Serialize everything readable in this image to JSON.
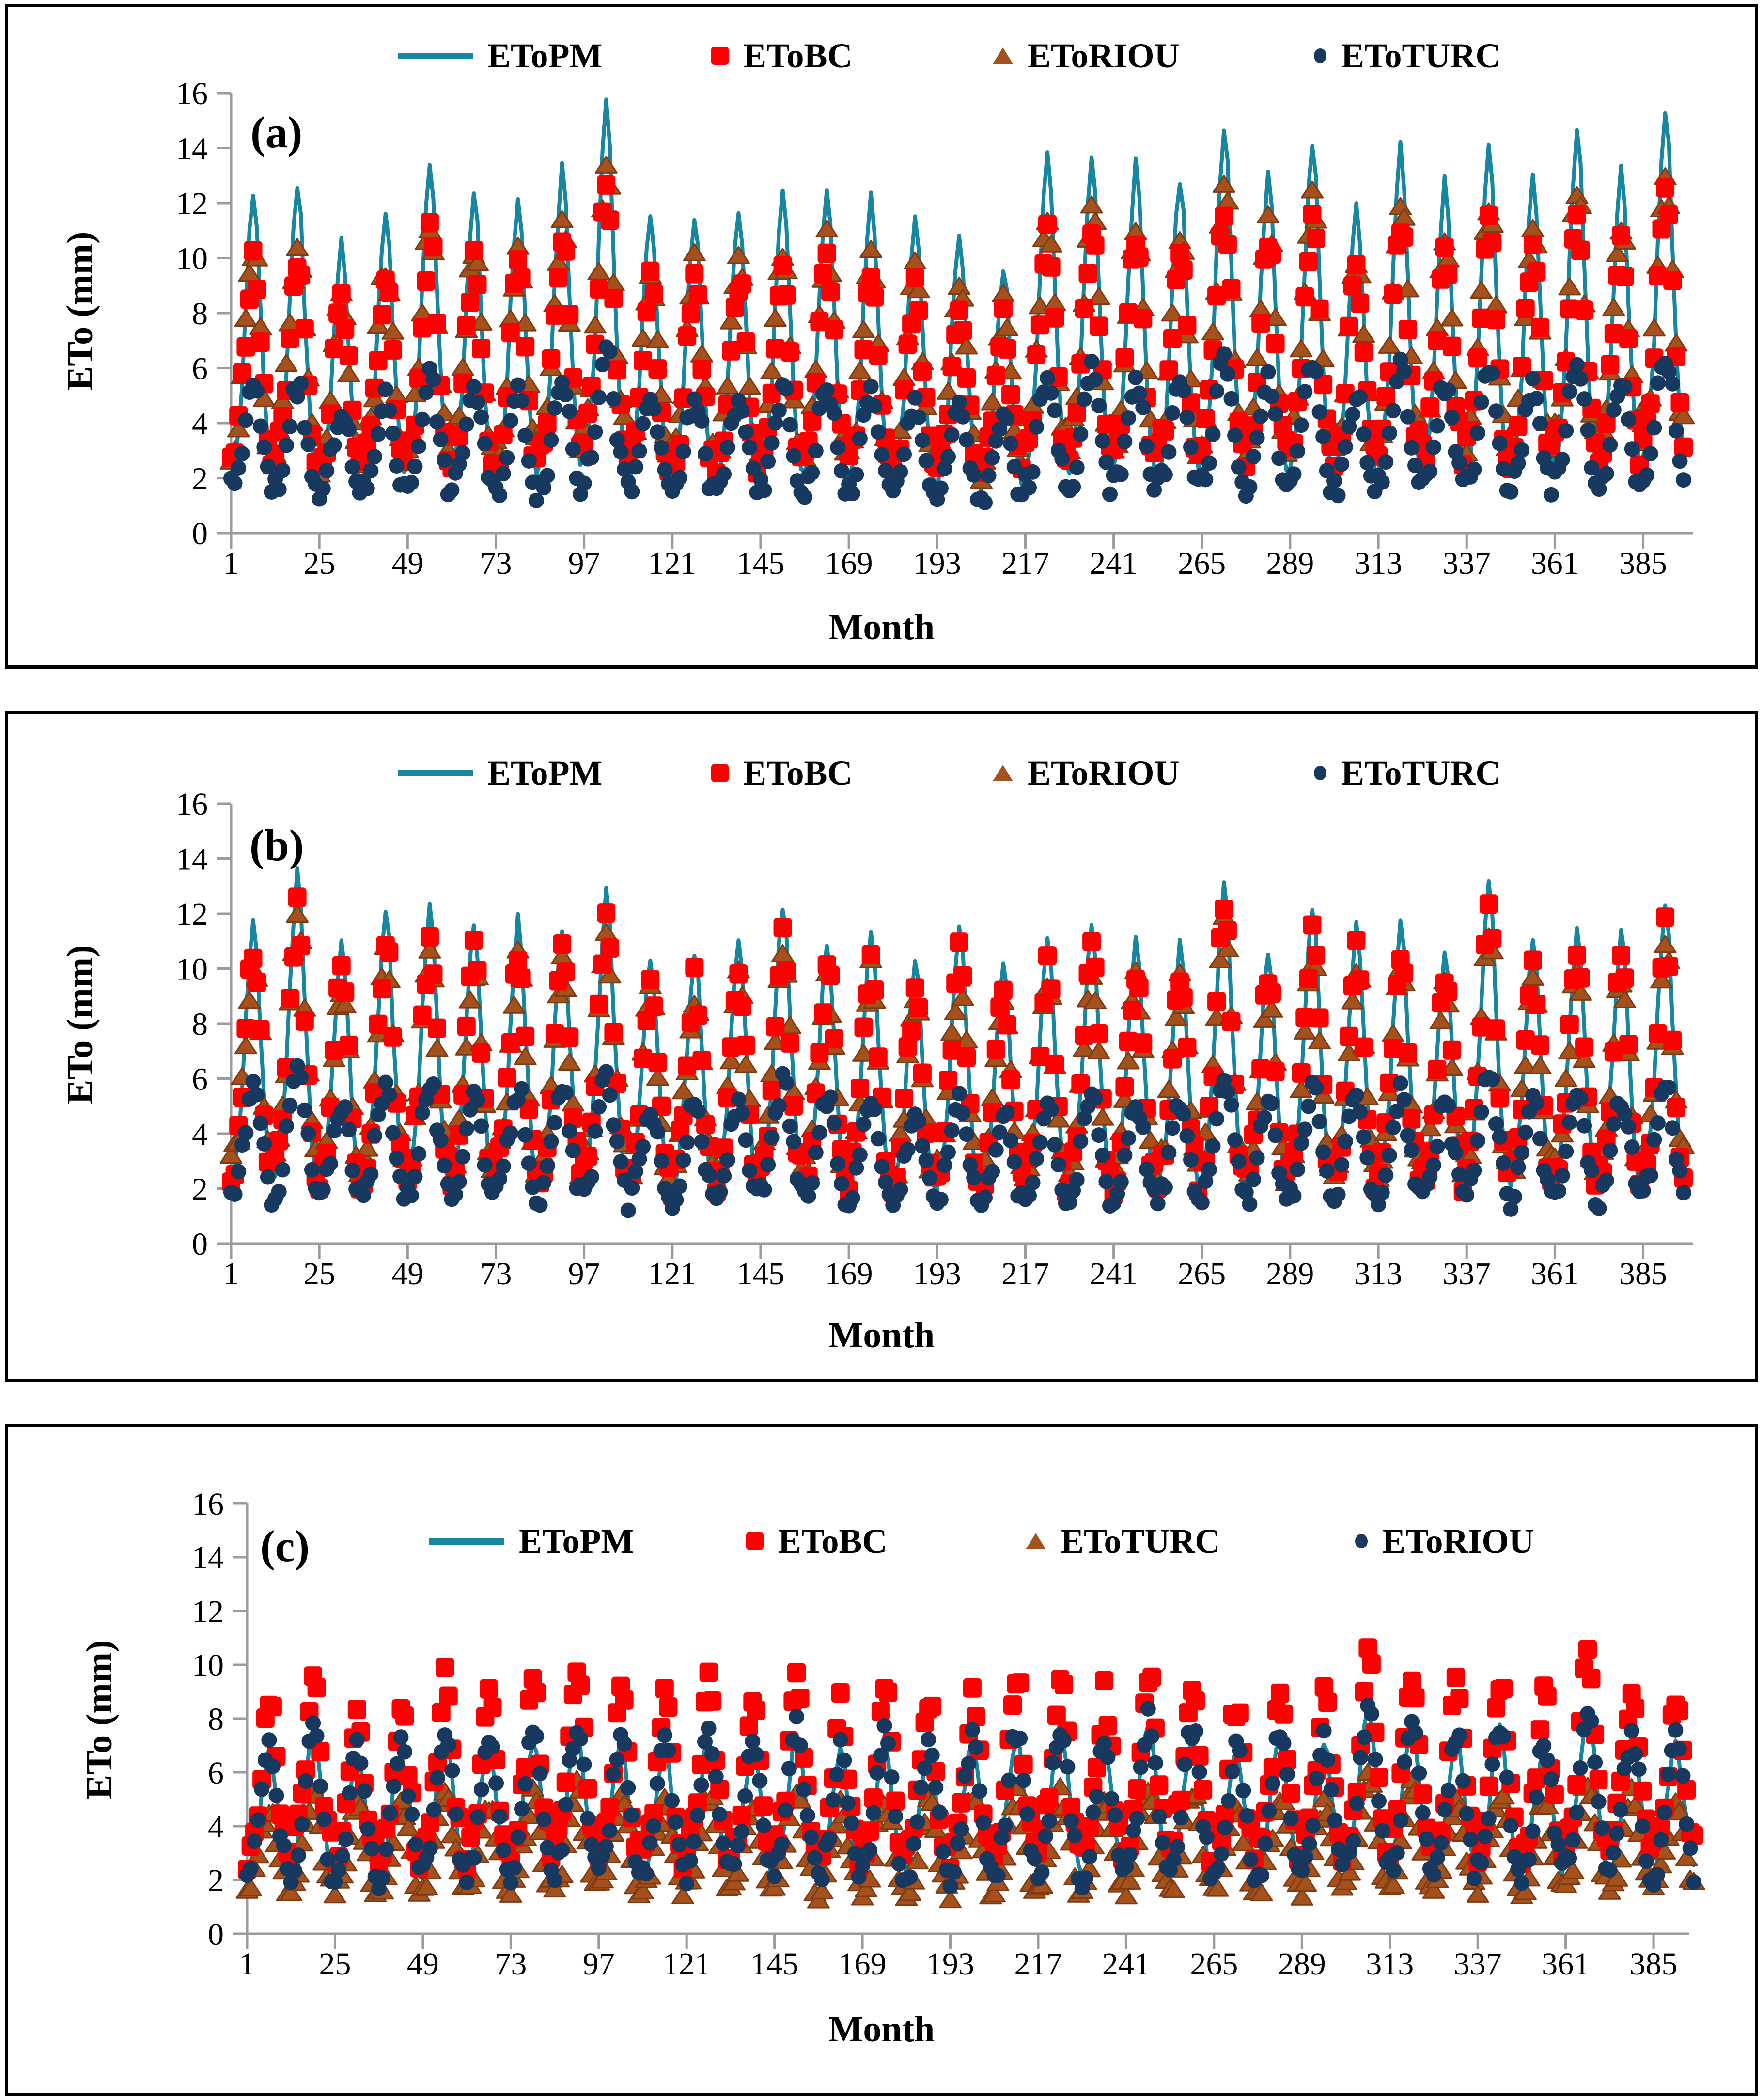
{
  "figure": {
    "background": "#FFFFFF",
    "panel_border_color": "#000000"
  },
  "colors": {
    "pm_line": "#1786A0",
    "bc_square": "#FE0000",
    "riou_triangle_fill": "#A5511D",
    "triangle_edge": "#7E3A10",
    "turc_circle": "#17395F",
    "axis": "#9B9B9B",
    "tick_text": "#000000"
  },
  "chart_data": [
    {
      "panel": "(a)",
      "type": "line",
      "subtype": "line+scatter seasonal monthly series",
      "x_label": "Month",
      "y_label": "ETo (mm)",
      "xlim": [
        1,
        396
      ],
      "ylim": [
        0,
        16
      ],
      "n_months": 396,
      "x_ticks": [
        1,
        25,
        49,
        73,
        97,
        121,
        145,
        169,
        193,
        217,
        241,
        265,
        289,
        313,
        337,
        361,
        385
      ],
      "y_ticks": [
        0,
        2,
        4,
        6,
        8,
        10,
        12,
        14,
        16
      ],
      "grid": "off",
      "legend_position": "top-center",
      "legend": [
        {
          "label": "EToPM",
          "marker": "line",
          "color": "#1786A0"
        },
        {
          "label": "EToBC",
          "marker": "square",
          "color": "#FE0000"
        },
        {
          "label": "EToRIOU",
          "marker": "triangle",
          "color": "#A5511D"
        },
        {
          "label": "EToTURC",
          "marker": "circle",
          "color": "#17395F"
        }
      ],
      "series": [
        {
          "name": "EToPM",
          "style": "line",
          "color": "#1786A0",
          "noise": 0.25,
          "seed": 11,
          "monthly_profile": [
            2.1,
            2.6,
            3.7,
            5.5,
            8.4,
            10.8,
            12.3,
            11.1,
            8.0,
            5.2,
            3.2,
            2.2
          ],
          "annual_scale": [
            1.01,
            1.03,
            0.86,
            0.94,
            1.1,
            1.01,
            0.98,
            1.08,
            1.28,
            0.94,
            0.94,
            0.95,
            1.0,
            1.03,
            0.99,
            0.92,
            0.87,
            0.79,
            1.12,
            1.13,
            1.09,
            1.05,
            1.21,
            1.07,
            1.16,
            0.97,
            1.15,
            1.04,
            1.13,
            1.06,
            1.2,
            1.07,
            1.26
          ]
        },
        {
          "name": "EToRIOU",
          "style": "triangle",
          "color": "#A5511D",
          "edge": "#7E3A10",
          "noise": 0.5,
          "seed": 22,
          "monthly_profile": [
            3.0,
            3.4,
            4.2,
            5.7,
            7.6,
            9.4,
            10.4,
            9.6,
            7.3,
            5.2,
            3.6,
            3.1
          ],
          "annual_scale": [
            1.01,
            1.03,
            0.86,
            0.94,
            1.1,
            1.01,
            0.98,
            1.08,
            1.28,
            0.94,
            0.94,
            0.95,
            1.0,
            1.03,
            0.99,
            0.92,
            0.87,
            0.79,
            1.12,
            1.13,
            1.09,
            1.05,
            1.21,
            1.07,
            1.16,
            0.97,
            1.15,
            1.04,
            1.13,
            1.06,
            1.2,
            1.07,
            1.26
          ]
        },
        {
          "name": "EToBC",
          "style": "square",
          "color": "#FE0000",
          "noise": 0.55,
          "seed": 33,
          "monthly_profile": [
            2.7,
            3.1,
            3.9,
            5.4,
            7.2,
            8.8,
            9.8,
            9.0,
            6.9,
            4.9,
            3.4,
            2.8
          ],
          "annual_scale": [
            1.01,
            1.03,
            0.86,
            0.94,
            1.1,
            1.01,
            0.98,
            1.08,
            1.28,
            0.94,
            0.94,
            0.95,
            1.0,
            1.03,
            0.99,
            0.92,
            0.87,
            0.79,
            1.12,
            1.13,
            1.09,
            1.05,
            1.21,
            1.07,
            1.16,
            0.97,
            1.15,
            1.04,
            1.13,
            1.06,
            1.2,
            1.07,
            1.26
          ]
        },
        {
          "name": "EToTURC",
          "style": "circle",
          "color": "#17395F",
          "noise": 0.4,
          "seed": 44,
          "monthly_profile": [
            1.6,
            1.8,
            2.3,
            3.1,
            4.1,
            4.8,
            5.2,
            4.9,
            4.0,
            2.9,
            2.1,
            1.6
          ],
          "annual_scale": [
            1.01,
            1.03,
            0.86,
            0.94,
            1.1,
            1.01,
            0.98,
            1.08,
            1.28,
            0.94,
            0.94,
            0.95,
            1.0,
            1.03,
            0.99,
            0.92,
            0.87,
            0.79,
            1.12,
            1.13,
            1.09,
            1.05,
            1.21,
            1.07,
            1.16,
            0.97,
            1.15,
            1.04,
            1.13,
            1.06,
            1.2,
            1.07,
            1.26
          ]
        }
      ]
    },
    {
      "panel": "(b)",
      "type": "line",
      "subtype": "line+scatter seasonal monthly series",
      "x_label": "Month",
      "y_label": "ETo (mm)",
      "xlim": [
        1,
        396
      ],
      "ylim": [
        0,
        16
      ],
      "n_months": 396,
      "x_ticks": [
        1,
        25,
        49,
        73,
        97,
        121,
        145,
        169,
        193,
        217,
        241,
        265,
        289,
        313,
        337,
        361,
        385
      ],
      "y_ticks": [
        0,
        2,
        4,
        6,
        8,
        10,
        12,
        14,
        16
      ],
      "grid": "off",
      "legend_position": "top-center",
      "legend": [
        {
          "label": "EToPM",
          "marker": "line",
          "color": "#1786A0"
        },
        {
          "label": "EToBC",
          "marker": "square",
          "color": "#FE0000"
        },
        {
          "label": "EToRIOU",
          "marker": "triangle",
          "color": "#A5511D"
        },
        {
          "label": "EToTURC",
          "marker": "circle",
          "color": "#17395F"
        }
      ],
      "series": [
        {
          "name": "EToPM",
          "style": "line",
          "color": "#1786A0",
          "noise": 0.25,
          "seed": 55,
          "monthly_profile": [
            2.3,
            2.8,
            3.9,
            5.6,
            8.1,
            10.4,
            11.9,
            10.8,
            7.9,
            5.3,
            3.3,
            2.4
          ],
          "annual_scale": [
            0.99,
            1.13,
            0.92,
            1.02,
            1.03,
            0.98,
            0.99,
            0.97,
            1.08,
            0.88,
            0.89,
            0.92,
            1.04,
            0.93,
            0.96,
            0.86,
            0.97,
            0.85,
            0.92,
            0.97,
            0.93,
            0.92,
            1.11,
            0.89,
            1.03,
            0.97,
            0.98,
            0.89,
            1.09,
            0.92,
            0.97,
            0.95,
            1.04
          ]
        },
        {
          "name": "EToRIOU",
          "style": "triangle",
          "color": "#A5511D",
          "edge": "#7E3A10",
          "noise": 0.5,
          "seed": 66,
          "monthly_profile": [
            2.9,
            3.3,
            4.2,
            5.7,
            7.5,
            9.2,
            10.3,
            9.5,
            7.3,
            5.2,
            3.6,
            3.0
          ],
          "annual_scale": [
            0.99,
            1.13,
            0.92,
            1.02,
            1.03,
            0.98,
            0.99,
            0.97,
            1.08,
            0.88,
            0.89,
            0.92,
            1.04,
            0.93,
            0.96,
            0.86,
            0.97,
            0.85,
            0.92,
            0.97,
            0.93,
            0.92,
            1.11,
            0.89,
            1.03,
            0.97,
            0.98,
            0.89,
            1.09,
            0.92,
            0.97,
            0.95,
            1.04
          ]
        },
        {
          "name": "EToBC",
          "style": "square",
          "color": "#FE0000",
          "noise": 0.55,
          "seed": 77,
          "monthly_profile": [
            2.5,
            3.0,
            4.0,
            5.6,
            7.7,
            9.6,
            10.9,
            9.9,
            7.5,
            5.1,
            3.4,
            2.6
          ],
          "annual_scale": [
            0.99,
            1.13,
            0.92,
            1.02,
            1.03,
            0.98,
            0.99,
            0.97,
            1.08,
            0.88,
            0.89,
            0.92,
            1.04,
            0.93,
            0.96,
            0.86,
            0.97,
            0.85,
            0.92,
            0.97,
            0.93,
            0.92,
            1.11,
            0.89,
            1.03,
            0.97,
            0.98,
            0.89,
            1.09,
            0.92,
            0.97,
            0.95,
            1.04
          ]
        },
        {
          "name": "EToTURC",
          "style": "circle",
          "color": "#17395F",
          "noise": 0.4,
          "seed": 88,
          "monthly_profile": [
            1.7,
            2.0,
            2.6,
            3.5,
            4.4,
            5.2,
            5.6,
            5.3,
            4.3,
            3.3,
            2.4,
            1.8
          ],
          "annual_scale": [
            0.99,
            1.13,
            0.92,
            1.02,
            1.03,
            0.98,
            0.99,
            0.97,
            1.08,
            0.88,
            0.89,
            0.92,
            1.04,
            0.93,
            0.96,
            0.86,
            0.97,
            0.85,
            0.92,
            0.97,
            0.93,
            0.92,
            1.11,
            0.89,
            1.03,
            0.97,
            0.98,
            0.89,
            1.09,
            0.92,
            0.97,
            0.95,
            1.04
          ]
        }
      ]
    },
    {
      "panel": "(c)",
      "type": "line",
      "subtype": "line+scatter seasonal monthly series",
      "x_label": "Month",
      "y_label": "ETo (mm)",
      "xlim": [
        1,
        396
      ],
      "ylim": [
        0,
        16
      ],
      "n_months": 396,
      "x_ticks": [
        1,
        25,
        49,
        73,
        97,
        121,
        145,
        169,
        193,
        217,
        241,
        265,
        289,
        313,
        337,
        361,
        385
      ],
      "y_ticks": [
        0,
        2,
        4,
        6,
        8,
        10,
        12,
        14,
        16
      ],
      "grid": "off",
      "legend_position": "top-center-inside",
      "legend": [
        {
          "label": "EToPM",
          "marker": "line",
          "color": "#1786A0"
        },
        {
          "label": "EToBC",
          "marker": "square",
          "color": "#FE0000"
        },
        {
          "label": "EToTURC",
          "marker": "triangle",
          "color": "#A5511D"
        },
        {
          "label": "EToRIOU",
          "marker": "circle",
          "color": "#17395F"
        }
      ],
      "series": [
        {
          "name": "EToPM",
          "style": "line",
          "color": "#1786A0",
          "noise": 0.3,
          "seed": 99,
          "monthly_profile": [
            2.3,
            2.6,
            3.3,
            4.3,
            5.5,
            6.5,
            7.1,
            6.6,
            5.4,
            4.1,
            3.0,
            2.4
          ],
          "annual_scale": [
            0.95,
            1.03,
            0.93,
            0.96,
            1.06,
            0.98,
            1.02,
            1.08,
            1.0,
            0.96,
            1.03,
            0.99,
            1.05,
            0.94,
            1.01,
            0.97,
            1.0,
            1.04,
            1.07,
            0.98,
            1.1,
            1.05,
            0.96,
            1.02,
            1.0,
            1.15,
            1.08,
            1.02,
            1.06,
            0.98,
            1.16,
            1.04,
            1.0
          ]
        },
        {
          "name": "EToTURC",
          "style": "triangle",
          "color": "#A5511D",
          "edge": "#7E3A10",
          "noise": 0.35,
          "seed": 111,
          "monthly_profile": [
            1.6,
            1.8,
            2.3,
            3.0,
            3.8,
            4.6,
            5.0,
            4.7,
            3.8,
            2.9,
            2.1,
            1.7
          ],
          "annual_scale": [
            0.95,
            1.03,
            0.93,
            0.96,
            1.06,
            0.98,
            1.02,
            1.08,
            1.0,
            0.96,
            1.03,
            0.99,
            1.05,
            0.94,
            1.01,
            0.97,
            1.0,
            1.04,
            1.07,
            0.98,
            1.1,
            1.05,
            0.96,
            1.02,
            1.0,
            1.15,
            1.08,
            1.02,
            1.06,
            0.98,
            1.16,
            1.04,
            1.0
          ]
        },
        {
          "name": "EToBC",
          "style": "square",
          "color": "#FE0000",
          "noise": 0.6,
          "seed": 123,
          "monthly_profile": [
            3.0,
            3.4,
            4.1,
            5.0,
            6.4,
            8.0,
            9.0,
            8.4,
            6.6,
            4.9,
            3.7,
            3.1
          ],
          "annual_scale": [
            0.95,
            1.03,
            0.93,
            0.96,
            1.06,
            0.98,
            1.02,
            1.08,
            1.0,
            0.96,
            1.03,
            0.99,
            1.05,
            0.94,
            1.01,
            0.97,
            1.0,
            1.04,
            1.07,
            0.98,
            1.1,
            1.05,
            0.96,
            1.02,
            1.0,
            1.15,
            1.08,
            1.02,
            1.06,
            0.98,
            1.16,
            1.04,
            1.0
          ]
        },
        {
          "name": "EToRIOU",
          "style": "circle",
          "color": "#17395F",
          "noise": 0.45,
          "seed": 135,
          "monthly_profile": [
            2.2,
            2.5,
            3.2,
            4.2,
            5.6,
            6.7,
            7.3,
            6.8,
            5.5,
            4.2,
            3.0,
            2.3
          ],
          "annual_scale": [
            0.95,
            1.03,
            0.93,
            0.96,
            1.06,
            0.98,
            1.02,
            1.08,
            1.0,
            0.96,
            1.03,
            0.99,
            1.05,
            0.94,
            1.01,
            0.97,
            1.0,
            1.04,
            1.07,
            0.98,
            1.1,
            1.05,
            0.96,
            1.02,
            1.0,
            1.15,
            1.08,
            1.02,
            1.06,
            0.98,
            1.16,
            1.04,
            1.0
          ]
        }
      ]
    }
  ]
}
